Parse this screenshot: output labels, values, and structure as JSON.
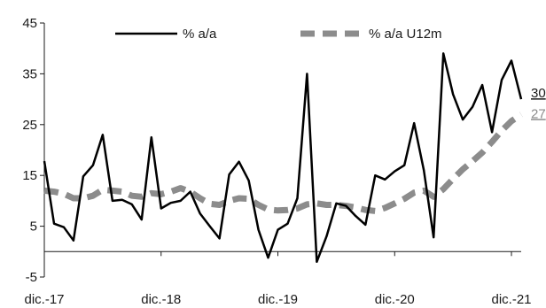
{
  "chart_data": {
    "type": "line",
    "title": "",
    "xlabel": "",
    "ylabel": "",
    "ylim": [
      -5,
      45
    ],
    "y_ticks": [
      "45",
      "35",
      "25",
      "15",
      "5",
      "-5"
    ],
    "y_tick_values": [
      45,
      35,
      25,
      15,
      5,
      -5
    ],
    "x_tick_labels": [
      "dic.-17",
      "dic.-18",
      "dic.-19",
      "dic.-20",
      "dic.-21"
    ],
    "x_tick_months": [
      0,
      12,
      24,
      36,
      48
    ],
    "baseline": 0,
    "grid": false,
    "legend_position": "top",
    "series": [
      {
        "name": "% a/a",
        "style": "solid",
        "color": "#000000",
        "end_label": "30",
        "values": [
          17.8,
          5.5,
          4.8,
          2.2,
          14.8,
          17.0,
          23.0,
          10.0,
          10.2,
          9.3,
          6.3,
          22.5,
          8.5,
          9.6,
          10.0,
          11.8,
          7.5,
          5.0,
          2.6,
          15.2,
          17.7,
          14.0,
          4.3,
          -1.2,
          4.3,
          5.5,
          10.5,
          35.0,
          -2.0,
          3.0,
          9.5,
          9.0,
          7.0,
          5.3,
          15.0,
          14.2,
          15.8,
          17.0,
          25.3,
          16.0,
          2.8,
          39.0,
          31.0,
          26.0,
          28.5,
          32.8,
          23.5,
          33.8,
          37.6,
          30.0
        ]
      },
      {
        "name": "% a/a U12m",
        "style": "dashed",
        "color": "#8c8c8c",
        "end_label": "27",
        "values": [
          12.0,
          11.8,
          11.4,
          10.5,
          10.5,
          11.0,
          12.2,
          12.0,
          11.8,
          11.0,
          10.8,
          11.5,
          11.3,
          11.8,
          12.5,
          11.8,
          10.5,
          9.4,
          9.2,
          10.0,
          10.5,
          10.4,
          9.2,
          8.3,
          8.1,
          8.2,
          8.5,
          9.3,
          9.5,
          9.2,
          9.2,
          9.0,
          8.7,
          8.2,
          8.0,
          8.6,
          9.5,
          10.4,
          11.6,
          12.0,
          10.8,
          12.3,
          14.3,
          16.2,
          17.8,
          19.5,
          21.6,
          23.8,
          25.7,
          27.0
        ]
      }
    ]
  }
}
